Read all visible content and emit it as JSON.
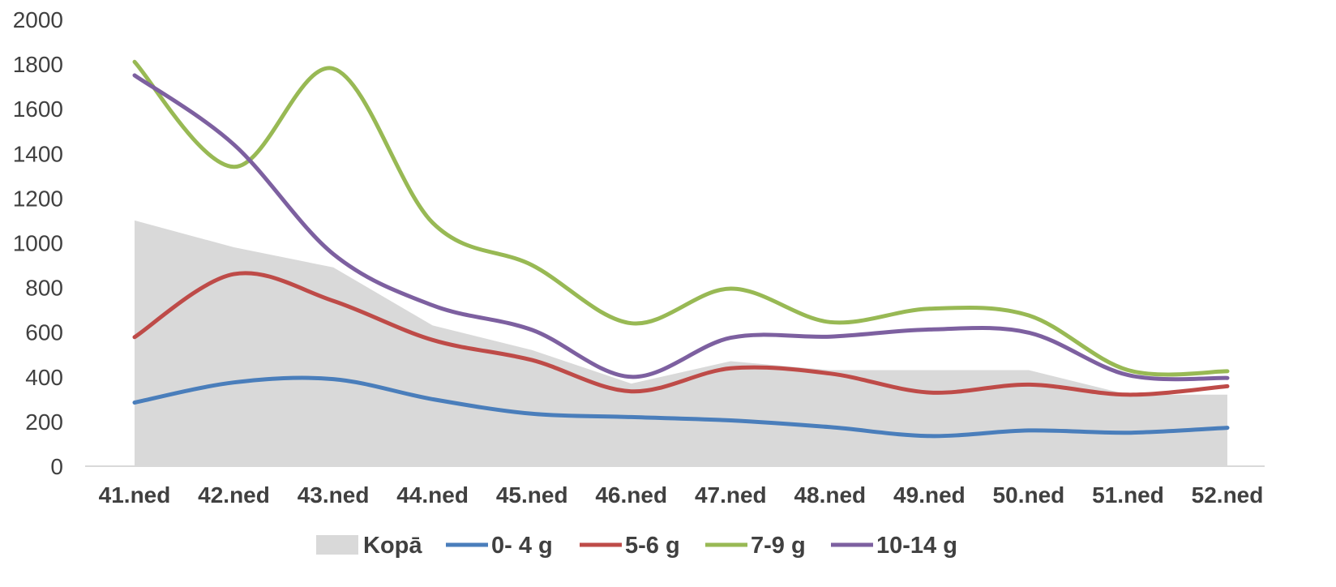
{
  "chart_data": {
    "type": "line",
    "categories": [
      "41.ned",
      "42.ned",
      "43.ned",
      "44.ned",
      "45.ned",
      "46.ned",
      "47.ned",
      "48.ned",
      "49.ned",
      "50.ned",
      "51.ned",
      "52.ned"
    ],
    "ylim": [
      0,
      2000
    ],
    "yticks": [
      "0",
      "200",
      "400",
      "600",
      "800",
      "1000",
      "1200",
      "1400",
      "1600",
      "1800",
      "2000"
    ],
    "grid": false,
    "legend_position": "bottom",
    "area_series": {
      "name": "Kopā",
      "type": "area",
      "color": "#d9d9d9",
      "values": [
        1100,
        980,
        890,
        630,
        520,
        370,
        470,
        430,
        430,
        430,
        320,
        320
      ]
    },
    "series": [
      {
        "name": "0- 4 g",
        "type": "line",
        "color": "#4a7ebb",
        "values": [
          285,
          375,
          390,
          300,
          235,
          220,
          205,
          175,
          135,
          160,
          150,
          172
        ]
      },
      {
        "name": "5-6 g",
        "type": "line",
        "color": "#be4b48",
        "values": [
          578,
          860,
          740,
          565,
          475,
          335,
          438,
          415,
          330,
          365,
          320,
          358
        ]
      },
      {
        "name": "7-9 g",
        "type": "line",
        "color": "#98b954",
        "values": [
          1810,
          1340,
          1780,
          1090,
          900,
          640,
          795,
          645,
          705,
          675,
          430,
          425
        ]
      },
      {
        "name": "10-14 g",
        "type": "line",
        "color": "#7d60a0",
        "values": [
          1750,
          1440,
          950,
          720,
          610,
          400,
          575,
          580,
          612,
          598,
          408,
          395
        ]
      }
    ]
  }
}
